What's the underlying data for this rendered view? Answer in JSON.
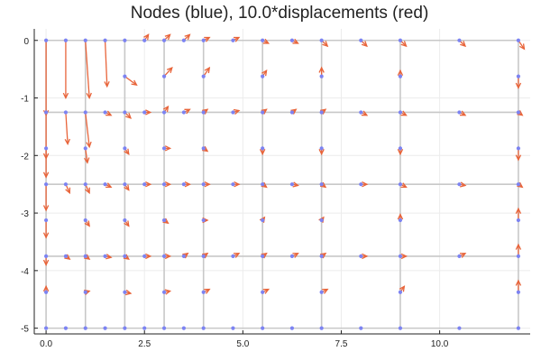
{
  "chart_data": {
    "type": "quiver",
    "title": "Nodes (blue), 10.0*displacements (red)",
    "xlabel": "",
    "ylabel": "",
    "xlim": [
      -0.3,
      12.3
    ],
    "ylim": [
      -5.1,
      0.2
    ],
    "xticks": [
      0,
      2.5,
      5,
      7.5,
      10
    ],
    "xtick_labels": [
      "0.0",
      "2.5",
      "5.0",
      "7.5",
      "10.0"
    ],
    "yticks": [
      0,
      -1,
      -2,
      -3,
      -4,
      -5
    ],
    "ytick_labels": [
      "0",
      "-1",
      "-2",
      "-3",
      "-4",
      "-5"
    ],
    "grid": true,
    "colors": {
      "nodes": "#7c83f2",
      "arrows": "#e8643a",
      "mesh": "#c8c8c8",
      "grid": "#ececec",
      "axis": "#222222"
    },
    "mesh_rows": [
      0,
      -1.25,
      -2.5,
      -3.75,
      -5
    ],
    "mesh_cols": [
      0,
      1,
      2,
      3,
      4,
      5.5,
      7,
      9,
      12
    ],
    "nodes": [
      {
        "x": 0,
        "y": 0,
        "u": 0,
        "v": -1.3
      },
      {
        "x": 0.5,
        "y": 0,
        "u": 0,
        "v": -1.0
      },
      {
        "x": 1,
        "y": 0,
        "u": 0.1,
        "v": -1.0
      },
      {
        "x": 1.5,
        "y": 0,
        "u": 0.05,
        "v": -0.8
      },
      {
        "x": 2,
        "y": 0,
        "u": 0,
        "v": 0
      },
      {
        "x": 2.5,
        "y": 0,
        "u": 0.1,
        "v": 0.1
      },
      {
        "x": 3,
        "y": 0,
        "u": 0.15,
        "v": 0.1
      },
      {
        "x": 3.5,
        "y": 0,
        "u": 0.15,
        "v": 0.1
      },
      {
        "x": 4,
        "y": 0,
        "u": 0.15,
        "v": 0.05
      },
      {
        "x": 4.75,
        "y": 0,
        "u": 0.15,
        "v": 0.05
      },
      {
        "x": 5.5,
        "y": 0,
        "u": 0.15,
        "v": -0.05
      },
      {
        "x": 6.25,
        "y": 0,
        "u": 0.15,
        "v": -0.05
      },
      {
        "x": 7,
        "y": 0,
        "u": 0.15,
        "v": -0.1
      },
      {
        "x": 8,
        "y": 0,
        "u": 0.15,
        "v": -0.1
      },
      {
        "x": 9,
        "y": 0,
        "u": 0.15,
        "v": -0.1
      },
      {
        "x": 10.5,
        "y": 0,
        "u": 0.15,
        "v": -0.1
      },
      {
        "x": 12,
        "y": 0,
        "u": 0.15,
        "v": -0.15
      },
      {
        "x": 2,
        "y": -0.625,
        "u": 0.3,
        "v": -0.15
      },
      {
        "x": 3,
        "y": -0.625,
        "u": 0.2,
        "v": 0.15
      },
      {
        "x": 4,
        "y": -0.625,
        "u": 0.15,
        "v": 0.15
      },
      {
        "x": 5.5,
        "y": -0.625,
        "u": 0.1,
        "v": 0.1
      },
      {
        "x": 7,
        "y": -0.625,
        "u": 0,
        "v": 0.15
      },
      {
        "x": 9,
        "y": -0.625,
        "u": 0,
        "v": 0.1
      },
      {
        "x": 12,
        "y": -0.625,
        "u": 0,
        "v": -0.2
      },
      {
        "x": 0,
        "y": -1.25,
        "u": 0,
        "v": -0.8
      },
      {
        "x": 0.5,
        "y": -1.25,
        "u": 0.05,
        "v": -0.55
      },
      {
        "x": 1,
        "y": -1.25,
        "u": 0.1,
        "v": -0.6
      },
      {
        "x": 1.5,
        "y": -1.25,
        "u": 0.15,
        "v": -0.05
      },
      {
        "x": 2,
        "y": -1.25,
        "u": 0.15,
        "v": -0.1
      },
      {
        "x": 2.5,
        "y": -1.25,
        "u": 0.15,
        "v": 0
      },
      {
        "x": 3,
        "y": -1.25,
        "u": 0.1,
        "v": 0.1
      },
      {
        "x": 3.5,
        "y": -1.25,
        "u": 0.15,
        "v": 0.05
      },
      {
        "x": 4,
        "y": -1.25,
        "u": 0.1,
        "v": 0.05
      },
      {
        "x": 4.75,
        "y": -1.25,
        "u": 0.15,
        "v": 0.03
      },
      {
        "x": 5.5,
        "y": -1.25,
        "u": 0.1,
        "v": 0.05
      },
      {
        "x": 6.25,
        "y": -1.25,
        "u": 0.1,
        "v": 0.05
      },
      {
        "x": 7,
        "y": -1.25,
        "u": 0.1,
        "v": 0.05
      },
      {
        "x": 8,
        "y": -1.25,
        "u": 0.15,
        "v": -0.05
      },
      {
        "x": 9,
        "y": -1.25,
        "u": 0.15,
        "v": -0.05
      },
      {
        "x": 10.5,
        "y": -1.25,
        "u": 0.15,
        "v": -0.05
      },
      {
        "x": 12,
        "y": -1.25,
        "u": 0.1,
        "v": -0.05
      },
      {
        "x": 0,
        "y": -1.875,
        "u": 0,
        "v": -0.5
      },
      {
        "x": 1,
        "y": -1.875,
        "u": 0.05,
        "v": -0.25
      },
      {
        "x": 2,
        "y": -1.875,
        "u": 0.1,
        "v": -0.1
      },
      {
        "x": 3,
        "y": -1.875,
        "u": 0.15,
        "v": 0
      },
      {
        "x": 4,
        "y": -1.875,
        "u": 0.1,
        "v": -0.05
      },
      {
        "x": 5.5,
        "y": -1.875,
        "u": 0,
        "v": -0.1
      },
      {
        "x": 7,
        "y": -1.875,
        "u": 0,
        "v": -0.1
      },
      {
        "x": 9,
        "y": -1.875,
        "u": 0,
        "v": -0.1
      },
      {
        "x": 12,
        "y": -1.875,
        "u": 0,
        "v": -0.2
      },
      {
        "x": 0,
        "y": -2.5,
        "u": 0,
        "v": -0.45
      },
      {
        "x": 0.5,
        "y": -2.5,
        "u": 0.1,
        "v": -0.15
      },
      {
        "x": 1,
        "y": -2.5,
        "u": 0.1,
        "v": -0.15
      },
      {
        "x": 1.5,
        "y": -2.5,
        "u": 0.15,
        "v": -0.05
      },
      {
        "x": 2,
        "y": -2.5,
        "u": 0.1,
        "v": -0.1
      },
      {
        "x": 2.5,
        "y": -2.5,
        "u": 0.15,
        "v": 0
      },
      {
        "x": 3,
        "y": -2.5,
        "u": 0.15,
        "v": 0
      },
      {
        "x": 3.5,
        "y": -2.5,
        "u": 0.15,
        "v": 0
      },
      {
        "x": 4,
        "y": -2.5,
        "u": 0.15,
        "v": 0
      },
      {
        "x": 4.75,
        "y": -2.5,
        "u": 0.15,
        "v": 0
      },
      {
        "x": 5.5,
        "y": -2.5,
        "u": 0.1,
        "v": -0.05
      },
      {
        "x": 6.25,
        "y": -2.5,
        "u": 0.15,
        "v": -0.02
      },
      {
        "x": 7,
        "y": -2.5,
        "u": 0.1,
        "v": -0.05
      },
      {
        "x": 8,
        "y": -2.5,
        "u": 0.15,
        "v": 0
      },
      {
        "x": 9,
        "y": -2.5,
        "u": 0.15,
        "v": -0.05
      },
      {
        "x": 10.5,
        "y": -2.5,
        "u": 0.15,
        "v": -0.02
      },
      {
        "x": 12,
        "y": -2.5,
        "u": 0.1,
        "v": -0.05
      },
      {
        "x": 0,
        "y": -3.125,
        "u": 0,
        "v": -0.3
      },
      {
        "x": 1,
        "y": -3.125,
        "u": 0.1,
        "v": -0.1
      },
      {
        "x": 2,
        "y": -3.125,
        "u": 0.1,
        "v": -0.1
      },
      {
        "x": 3,
        "y": -3.125,
        "u": 0.1,
        "v": -0.05
      },
      {
        "x": 4,
        "y": -3.125,
        "u": 0.1,
        "v": 0
      },
      {
        "x": 5.5,
        "y": -3.125,
        "u": 0.05,
        "v": 0.05
      },
      {
        "x": 7,
        "y": -3.125,
        "u": 0.05,
        "v": 0.05
      },
      {
        "x": 9,
        "y": -3.125,
        "u": 0,
        "v": 0.1
      },
      {
        "x": 12,
        "y": -3.125,
        "u": 0,
        "v": 0.2
      },
      {
        "x": 0,
        "y": -3.75,
        "u": 0,
        "v": -0.15
      },
      {
        "x": 0.5,
        "y": -3.75,
        "u": 0.1,
        "v": -0.05
      },
      {
        "x": 1,
        "y": -3.75,
        "u": 0.1,
        "v": -0.05
      },
      {
        "x": 1.5,
        "y": -3.75,
        "u": 0.15,
        "v": -0.02
      },
      {
        "x": 2,
        "y": -3.75,
        "u": 0.1,
        "v": -0.05
      },
      {
        "x": 2.5,
        "y": -3.75,
        "u": 0.15,
        "v": 0
      },
      {
        "x": 3,
        "y": -3.75,
        "u": 0.15,
        "v": 0
      },
      {
        "x": 3.5,
        "y": -3.75,
        "u": 0.1,
        "v": 0.05
      },
      {
        "x": 4,
        "y": -3.75,
        "u": 0.1,
        "v": 0.05
      },
      {
        "x": 4.75,
        "y": -3.75,
        "u": 0.15,
        "v": 0.05
      },
      {
        "x": 5.5,
        "y": -3.75,
        "u": 0.1,
        "v": 0.05
      },
      {
        "x": 6.25,
        "y": -3.75,
        "u": 0.15,
        "v": 0.05
      },
      {
        "x": 7,
        "y": -3.75,
        "u": 0.1,
        "v": 0.05
      },
      {
        "x": 8,
        "y": -3.75,
        "u": 0.15,
        "v": 0
      },
      {
        "x": 9,
        "y": -3.75,
        "u": 0.15,
        "v": 0
      },
      {
        "x": 10.5,
        "y": -3.75,
        "u": 0.15,
        "v": 0.05
      },
      {
        "x": 12,
        "y": -3.75,
        "u": 0,
        "v": 0.2
      },
      {
        "x": 0,
        "y": -4.375,
        "u": 0,
        "v": 0.1
      },
      {
        "x": 1,
        "y": -4.375,
        "u": 0.1,
        "v": 0.02
      },
      {
        "x": 2,
        "y": -4.375,
        "u": 0.15,
        "v": -0.02
      },
      {
        "x": 3,
        "y": -4.375,
        "u": 0.15,
        "v": 0.02
      },
      {
        "x": 4,
        "y": -4.375,
        "u": 0.15,
        "v": 0.05
      },
      {
        "x": 5.5,
        "y": -4.375,
        "u": 0.15,
        "v": 0.05
      },
      {
        "x": 7,
        "y": -4.375,
        "u": 0.15,
        "v": 0.05
      },
      {
        "x": 9,
        "y": -4.375,
        "u": 0.1,
        "v": 0.1
      },
      {
        "x": 12,
        "y": -4.375,
        "u": 0,
        "v": 0.2
      },
      {
        "x": 0,
        "y": -5,
        "u": 0,
        "v": 0
      },
      {
        "x": 0.5,
        "y": -5,
        "u": 0,
        "v": 0
      },
      {
        "x": 1,
        "y": -5,
        "u": 0,
        "v": 0
      },
      {
        "x": 1.5,
        "y": -5,
        "u": 0,
        "v": 0
      },
      {
        "x": 2,
        "y": -5,
        "u": 0,
        "v": 0
      },
      {
        "x": 2.5,
        "y": -5,
        "u": 0,
        "v": 0
      },
      {
        "x": 3,
        "y": -5,
        "u": 0,
        "v": 0
      },
      {
        "x": 3.5,
        "y": -5,
        "u": 0,
        "v": 0
      },
      {
        "x": 4,
        "y": -5,
        "u": 0,
        "v": 0
      },
      {
        "x": 4.75,
        "y": -5,
        "u": 0,
        "v": 0
      },
      {
        "x": 5.5,
        "y": -5,
        "u": 0,
        "v": 0
      },
      {
        "x": 6.25,
        "y": -5,
        "u": 0,
        "v": 0
      },
      {
        "x": 7,
        "y": -5,
        "u": 0,
        "v": 0
      },
      {
        "x": 8,
        "y": -5,
        "u": 0,
        "v": 0
      },
      {
        "x": 9,
        "y": -5,
        "u": 0,
        "v": 0
      },
      {
        "x": 10.5,
        "y": -5,
        "u": 0,
        "v": 0
      },
      {
        "x": 12,
        "y": -5,
        "u": 0,
        "v": 0
      }
    ]
  }
}
